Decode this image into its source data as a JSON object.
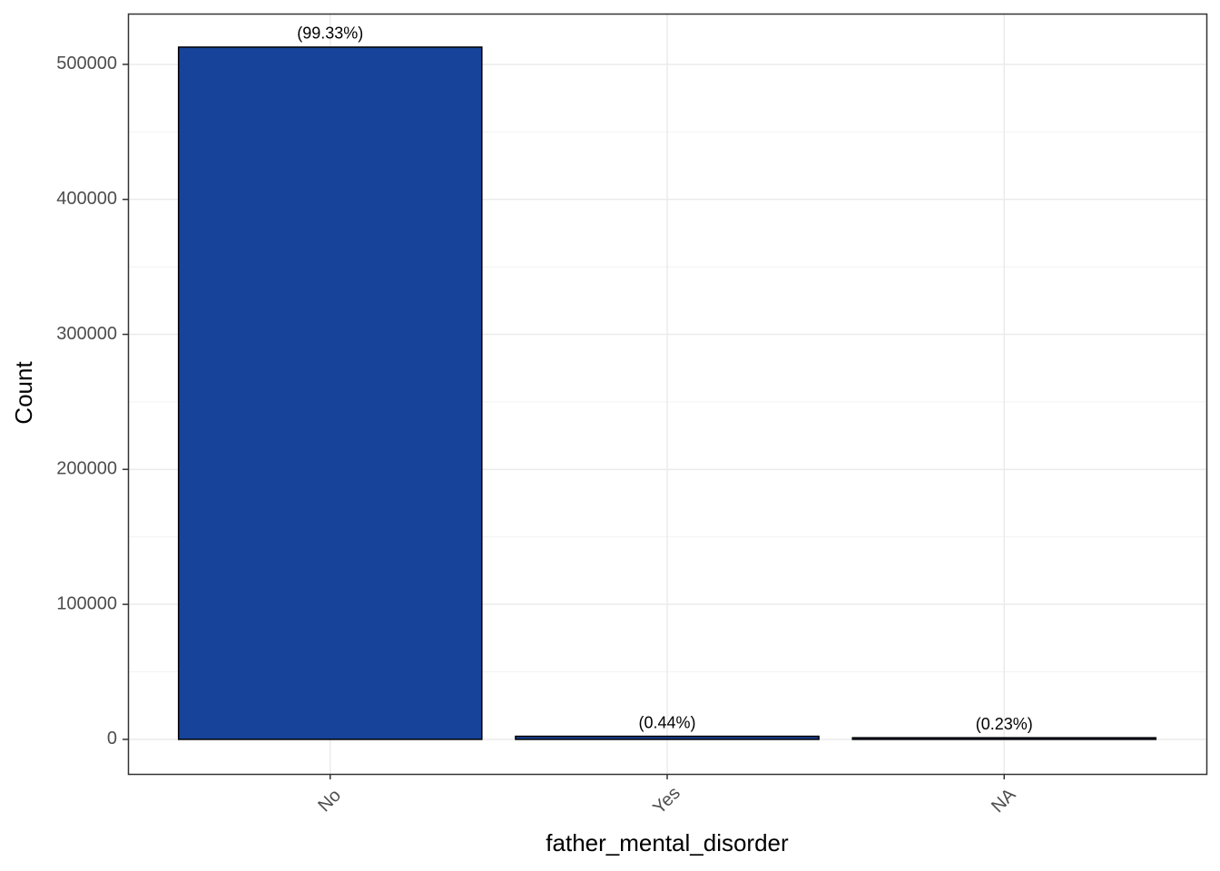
{
  "chart_data": {
    "type": "bar",
    "x_label": "father_mental_disorder",
    "y_label": "Count",
    "categories": [
      "No",
      "Yes",
      "NA"
    ],
    "values": [
      512770,
      2270,
      1190
    ],
    "bar_labels": [
      "(99.33%)",
      "(0.44%)",
      "(0.23%)"
    ],
    "color": "#17449a",
    "ylim": [
      -25600,
      537600
    ],
    "yticks": [
      0,
      100000,
      200000,
      300000,
      400000,
      500000
    ],
    "yminor": [
      50000,
      150000,
      250000,
      350000,
      450000
    ],
    "grid": true
  }
}
